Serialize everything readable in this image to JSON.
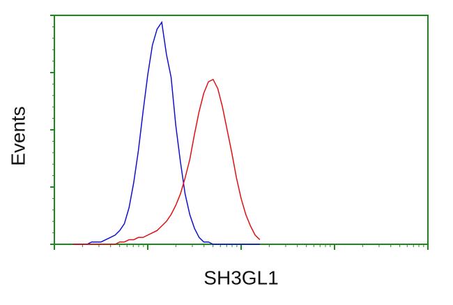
{
  "chart_data": {
    "type": "line",
    "x_label": "SH3GL1",
    "y_label": "Events",
    "x": [
      0.2,
      0.25,
      0.3,
      0.35,
      0.4,
      0.45,
      0.5,
      0.55,
      0.6,
      0.65,
      0.7,
      0.75,
      0.8,
      0.85,
      0.9,
      0.95,
      1.0,
      1.05,
      1.1,
      1.15,
      1.2,
      1.25,
      1.3,
      1.35,
      1.4,
      1.45,
      1.5,
      1.55,
      1.6,
      1.65,
      1.7,
      1.75,
      1.8,
      1.85,
      1.9,
      1.95,
      2.0,
      2.05,
      2.1,
      2.15,
      2.2
    ],
    "series": [
      {
        "color": "#1010d0",
        "values": [
          0,
          0,
          0,
          0,
          1,
          1,
          1,
          2,
          3,
          4,
          6,
          9,
          16,
          27,
          41,
          58,
          74,
          87,
          94,
          97,
          83,
          73,
          52,
          36,
          22,
          13,
          7,
          3,
          1,
          1,
          0,
          0,
          0,
          0,
          0,
          0,
          0,
          0,
          0,
          0,
          0
        ]
      },
      {
        "color": "#e01010",
        "values": [
          0,
          0,
          0,
          0,
          0,
          0,
          0,
          0,
          0,
          0,
          1,
          1,
          2,
          2,
          3,
          3,
          4,
          5,
          6,
          8,
          10,
          13,
          17,
          22,
          29,
          37,
          48,
          58,
          66,
          71,
          72,
          68,
          60,
          50,
          40,
          29,
          20,
          13,
          8,
          4,
          2
        ]
      }
    ],
    "xlim": [
      0,
      4
    ],
    "xticks": [
      0,
      1,
      2,
      3,
      4
    ],
    "log_minor_ticks": true,
    "ylim": [
      0,
      100
    ],
    "yticks": [
      0,
      25,
      50,
      75,
      100
    ],
    "frame_color": "#1a8a1a"
  }
}
